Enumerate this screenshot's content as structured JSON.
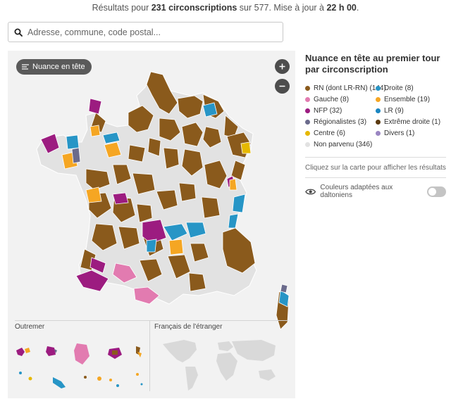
{
  "status": {
    "prefix": "Résultats pour",
    "count": "231 circonscriptions",
    "middle": "sur 577. Mise à jour à",
    "time": "22 h 00",
    "suffix": "."
  },
  "search": {
    "placeholder": "Adresse, commune, code postal..."
  },
  "map": {
    "nuance_button": "Nuance en tête",
    "zoom_in": "+",
    "zoom_out": "−",
    "outremer_title": "Outremer",
    "etranger_title": "Français de l'étranger"
  },
  "legend": {
    "title": "Nuance en tête au premier tour par circonscription",
    "items": [
      {
        "label": "RN (dont LR-RN) (144)",
        "color": "#8a5a1c"
      },
      {
        "label": "Droite (8)",
        "color": "#2795c6"
      },
      {
        "label": "Gauche (8)",
        "color": "#e27bb0"
      },
      {
        "label": "Ensemble (19)",
        "color": "#f5a623"
      },
      {
        "label": "NFP (32)",
        "color": "#9c1c80"
      },
      {
        "label": "LR (9)",
        "color": "#1a86c1"
      },
      {
        "label": "Régionalistes (3)",
        "color": "#6b6b8c"
      },
      {
        "label": "Extrême droite (1)",
        "color": "#5b3a11"
      },
      {
        "label": "Centre (6)",
        "color": "#e6b800"
      },
      {
        "label": "Divers (1)",
        "color": "#9a86c2"
      },
      {
        "label": "Non parvenu (346)",
        "color": "#e2e2e2"
      }
    ]
  },
  "hint": "Cliquez sur la carte pour afficher les résultats",
  "colorblind_label": "Couleurs adaptées aux daltoniens",
  "colors": {
    "rn": "#8a5a1c",
    "gauche": "#e27bb0",
    "nfp": "#9c1c80",
    "droite": "#2795c6",
    "ensemble": "#f5a623",
    "centre": "#e6b800",
    "regionalistes": "#6b6b8c",
    "divers": "#9a86c2",
    "non_parvenu": "#e2e2e2"
  }
}
